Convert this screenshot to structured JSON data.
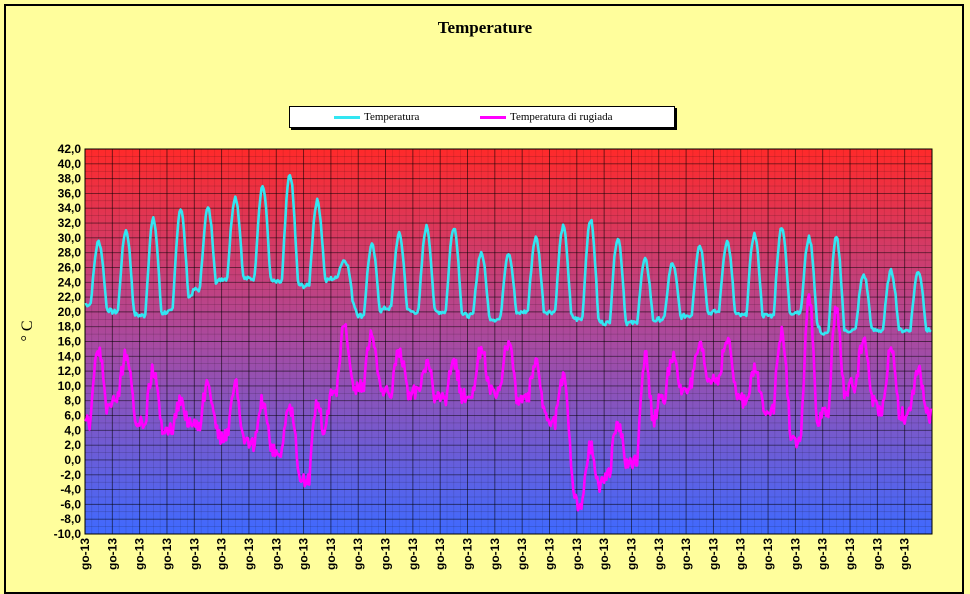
{
  "chart_data": {
    "type": "line",
    "title": "Temperature",
    "ylabel": "° C",
    "ylim": [
      -10,
      42
    ],
    "yticks": [
      "42,0",
      "40,0",
      "38,0",
      "36,0",
      "34,0",
      "32,0",
      "30,0",
      "28,0",
      "26,0",
      "24,0",
      "22,0",
      "20,0",
      "18,0",
      "16,0",
      "14,0",
      "12,0",
      "10,0",
      "8,0",
      "6,0",
      "4,0",
      "2,0",
      "0,0",
      "-2,0",
      "-4,0",
      "-6,0",
      "-8,0",
      "-10,0"
    ],
    "xtick_label": "go-13",
    "days": 31,
    "grid": true,
    "legend_position": "top-center",
    "series": [
      {
        "name": "Temperatura",
        "color": "#33e6f2",
        "daily_min": [
          21,
          20,
          19.5,
          20,
          23,
          24.5,
          24.5,
          24,
          23.5,
          24.5,
          19.5,
          20.5,
          20,
          20,
          19.5,
          19,
          20,
          20,
          19,
          18.5,
          18.5,
          19,
          19.5,
          20,
          19.5,
          19.5,
          20,
          17,
          17.5,
          17.5,
          17.5
        ],
        "daily_max": [
          29.5,
          31,
          32.5,
          34,
          34,
          35.5,
          37,
          38.5,
          35,
          27,
          29,
          30.5,
          31.5,
          31.5,
          28,
          28,
          30,
          31.5,
          32.5,
          30,
          27,
          26.5,
          29,
          29.5,
          30.5,
          31.5,
          30,
          30,
          25,
          25.5,
          25.5
        ]
      },
      {
        "name": "Temperatura di rugiada",
        "color": "#ff00ff",
        "daily_min": [
          5,
          8,
          5,
          4,
          5,
          3,
          2,
          1,
          -3,
          9,
          10,
          9,
          9,
          8,
          9,
          9,
          8,
          5,
          -6,
          -2,
          0,
          8,
          10,
          11,
          8,
          7,
          2,
          6,
          10,
          7,
          6
        ],
        "daily_max": [
          15,
          14,
          12,
          8,
          10,
          10,
          8,
          7,
          8,
          18,
          17,
          15,
          13,
          13,
          15,
          16,
          13,
          11,
          2,
          5,
          14,
          14,
          15,
          16,
          12,
          17,
          22,
          20,
          16,
          15,
          12
        ]
      }
    ]
  }
}
